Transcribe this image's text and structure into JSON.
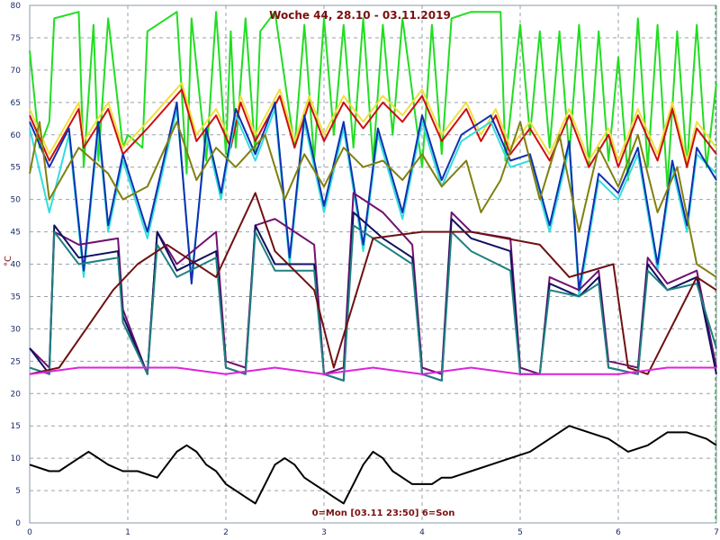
{
  "chart_data": {
    "type": "line",
    "title": "Woche 44, 28.10 - 03.11.2019",
    "footer": "0=Mon [03.11 23:50] 6=Son",
    "ylabel": "°C",
    "xlabel": "",
    "xlim": [
      0,
      7
    ],
    "ylim": [
      0,
      80
    ],
    "x_ticks": [
      0,
      1,
      2,
      3,
      4,
      5,
      6,
      7
    ],
    "y_ticks": [
      0,
      5,
      10,
      15,
      20,
      25,
      30,
      35,
      40,
      45,
      50,
      55,
      60,
      65,
      70,
      75,
      80
    ],
    "grid": "dashed, daily vertical and 5-unit horizontal",
    "series": [
      {
        "color": "#22dd22",
        "x": [
          0,
          0.1,
          0.2,
          0.25,
          0.5,
          0.55,
          0.65,
          0.7,
          0.8,
          0.95,
          1.0,
          1.15,
          1.2,
          1.5,
          1.6,
          1.65,
          1.8,
          1.9,
          2.0,
          2.05,
          2.1,
          2.2,
          2.3,
          2.35,
          2.5,
          2.7,
          2.8,
          2.9,
          3.0,
          3.1,
          3.2,
          3.3,
          3.4,
          3.5,
          3.6,
          3.7,
          3.8,
          4.0,
          4.1,
          4.2,
          4.3,
          4.5,
          4.8,
          4.85,
          5.0,
          5.1,
          5.2,
          5.3,
          5.4,
          5.5,
          5.6,
          5.7,
          5.8,
          5.9,
          6.0,
          6.1,
          6.2,
          6.3,
          6.4,
          6.5,
          6.6,
          6.7,
          6.8,
          6.9,
          7.0
        ],
        "values": [
          73,
          58,
          62,
          78,
          79,
          55,
          77,
          56,
          78,
          58,
          60,
          58,
          76,
          79,
          54,
          78,
          56,
          79,
          57,
          76,
          58,
          78,
          57,
          76,
          79,
          58,
          77,
          56,
          78,
          60,
          77,
          58,
          78,
          56,
          77,
          60,
          78,
          55,
          77,
          57,
          78,
          79,
          79,
          56,
          77,
          60,
          76,
          58,
          76,
          57,
          77,
          55,
          76,
          56,
          72,
          53,
          78,
          55,
          77,
          52,
          76,
          55,
          77,
          55,
          68
        ]
      },
      {
        "color": "#f0e040",
        "x": [
          0,
          0.2,
          0.5,
          0.55,
          0.8,
          0.95,
          1.2,
          1.55,
          1.7,
          1.9,
          2.05,
          2.15,
          2.3,
          2.55,
          2.7,
          2.85,
          3.0,
          3.2,
          3.4,
          3.6,
          3.8,
          4.0,
          4.2,
          4.45,
          4.6,
          4.75,
          4.9,
          5.1,
          5.3,
          5.5,
          5.7,
          5.9,
          6.0,
          6.2,
          6.4,
          6.55,
          6.7,
          6.8,
          7.0
        ],
        "values": [
          64,
          57,
          65,
          59,
          65,
          58,
          62,
          68,
          60,
          64,
          59,
          66,
          60,
          67,
          59,
          66,
          60,
          66,
          62,
          66,
          63,
          67,
          60,
          65,
          60,
          64,
          58,
          62,
          57,
          64,
          56,
          61,
          56,
          64,
          57,
          65,
          56,
          62,
          58
        ]
      },
      {
        "color": "#cc1010",
        "x": [
          0,
          0.2,
          0.5,
          0.55,
          0.8,
          0.95,
          1.2,
          1.55,
          1.7,
          1.9,
          2.05,
          2.15,
          2.3,
          2.55,
          2.7,
          2.85,
          3.0,
          3.2,
          3.4,
          3.6,
          3.8,
          4.0,
          4.2,
          4.45,
          4.6,
          4.75,
          4.9,
          5.1,
          5.3,
          5.5,
          5.7,
          5.9,
          6.0,
          6.2,
          6.4,
          6.55,
          6.7,
          6.8,
          7.0
        ],
        "values": [
          63,
          56,
          64,
          58,
          64,
          57,
          61,
          67,
          59,
          63,
          58,
          65,
          59,
          66,
          58,
          65,
          59,
          65,
          61,
          65,
          62,
          66,
          59,
          64,
          59,
          63,
          57,
          61,
          56,
          63,
          55,
          60,
          55,
          63,
          56,
          64,
          55,
          61,
          57
        ]
      },
      {
        "color": "#33dddd",
        "x": [
          0,
          0.2,
          0.4,
          0.55,
          0.7,
          0.8,
          0.95,
          1.2,
          1.5,
          1.65,
          1.8,
          1.95,
          2.1,
          2.3,
          2.5,
          2.65,
          2.8,
          3.0,
          3.2,
          3.4,
          3.55,
          3.8,
          4.0,
          4.2,
          4.4,
          4.7,
          4.9,
          5.1,
          5.3,
          5.5,
          5.6,
          5.8,
          6.0,
          6.2,
          6.4,
          6.55,
          6.7,
          6.8,
          7.0
        ],
        "values": [
          61,
          48,
          60,
          38,
          61,
          45,
          56,
          44,
          64,
          38,
          60,
          50,
          63,
          56,
          64,
          40,
          62,
          48,
          61,
          42,
          60,
          47,
          62,
          52,
          59,
          62,
          55,
          56,
          45,
          58,
          35,
          53,
          50,
          57,
          39,
          55,
          45,
          57,
          54
        ]
      },
      {
        "color": "#1030b0",
        "x": [
          0,
          0.2,
          0.4,
          0.55,
          0.7,
          0.8,
          0.95,
          1.2,
          1.5,
          1.65,
          1.8,
          1.95,
          2.1,
          2.3,
          2.5,
          2.65,
          2.8,
          3.0,
          3.2,
          3.4,
          3.55,
          3.8,
          4.0,
          4.2,
          4.4,
          4.7,
          4.9,
          5.1,
          5.3,
          5.5,
          5.6,
          5.8,
          6.0,
          6.2,
          6.4,
          6.55,
          6.7,
          6.8,
          7.0
        ],
        "values": [
          62,
          55,
          61,
          39,
          62,
          46,
          57,
          45,
          65,
          37,
          61,
          51,
          64,
          57,
          65,
          41,
          63,
          49,
          62,
          43,
          61,
          48,
          63,
          53,
          60,
          63,
          56,
          57,
          46,
          59,
          36,
          54,
          51,
          58,
          40,
          56,
          46,
          58,
          53
        ]
      },
      {
        "color": "#808010",
        "x": [
          0,
          0.1,
          0.2,
          0.5,
          0.8,
          0.95,
          1.2,
          1.5,
          1.7,
          1.9,
          2.1,
          2.4,
          2.6,
          2.8,
          3.0,
          3.2,
          3.4,
          3.6,
          3.8,
          4.0,
          4.2,
          4.45,
          4.6,
          4.8,
          5.0,
          5.2,
          5.4,
          5.6,
          5.8,
          6.0,
          6.2,
          6.4,
          6.6,
          6.8,
          7.0
        ],
        "values": [
          54,
          62,
          50,
          58,
          54,
          50,
          52,
          62,
          53,
          58,
          55,
          60,
          50,
          57,
          52,
          58,
          55,
          56,
          53,
          57,
          52,
          56,
          48,
          53,
          62,
          50,
          60,
          45,
          58,
          52,
          60,
          48,
          55,
          40,
          38
        ]
      },
      {
        "color": "#701070",
        "x": [
          0,
          0.2,
          0.25,
          0.5,
          0.9,
          0.95,
          1.2,
          1.3,
          1.5,
          1.9,
          2.0,
          2.2,
          2.3,
          2.5,
          2.9,
          3.0,
          3.2,
          3.3,
          3.6,
          3.9,
          4.0,
          4.2,
          4.3,
          4.5,
          4.9,
          5.0,
          5.2,
          5.3,
          5.6,
          5.8,
          5.9,
          6.2,
          6.3,
          6.5,
          6.8,
          7.0
        ],
        "values": [
          27,
          24,
          45,
          43,
          44,
          33,
          23,
          45,
          40,
          45,
          25,
          24,
          46,
          47,
          43,
          23,
          24,
          51,
          48,
          43,
          24,
          23,
          48,
          45,
          44,
          24,
          23,
          38,
          36,
          39,
          25,
          24,
          41,
          37,
          39,
          24
        ]
      },
      {
        "color": "#101060",
        "x": [
          0,
          0.2,
          0.25,
          0.5,
          0.9,
          0.95,
          1.2,
          1.3,
          1.5,
          1.9,
          2.0,
          2.2,
          2.3,
          2.5,
          2.9,
          3.0,
          3.2,
          3.3,
          3.6,
          3.9,
          4.0,
          4.2,
          4.3,
          4.5,
          4.9,
          5.0,
          5.2,
          5.3,
          5.6,
          5.8,
          5.9,
          6.2,
          6.3,
          6.5,
          6.8,
          7.0
        ],
        "values": [
          27,
          23,
          46,
          41,
          42,
          32,
          23,
          45,
          39,
          42,
          24,
          23,
          46,
          40,
          40,
          23,
          22,
          48,
          44,
          41,
          23,
          22,
          47,
          44,
          42,
          23,
          23,
          37,
          35,
          38,
          24,
          23,
          40,
          36,
          38,
          23
        ]
      },
      {
        "color": "#208080",
        "x": [
          0,
          0.2,
          0.25,
          0.5,
          0.9,
          0.95,
          1.2,
          1.3,
          1.5,
          1.9,
          2.0,
          2.2,
          2.3,
          2.5,
          2.9,
          3.0,
          3.2,
          3.3,
          3.6,
          3.9,
          4.0,
          4.2,
          4.3,
          4.5,
          4.9,
          5.0,
          5.2,
          5.3,
          5.6,
          5.8,
          5.9,
          6.2,
          6.3,
          6.5,
          6.8,
          7.0
        ],
        "values": [
          24,
          23,
          45,
          40,
          41,
          31,
          23,
          43,
          38,
          41,
          24,
          23,
          45,
          39,
          39,
          23,
          22,
          46,
          43,
          40,
          23,
          22,
          45,
          42,
          39,
          23,
          23,
          36,
          35,
          37,
          24,
          23,
          39,
          36,
          37,
          27
        ]
      },
      {
        "color": "#701010",
        "x": [
          0,
          0.3,
          0.85,
          1.1,
          1.4,
          1.9,
          2.3,
          2.5,
          2.9,
          3.1,
          3.5,
          4.0,
          4.5,
          5.2,
          5.5,
          5.95,
          6.1,
          6.3,
          6.6,
          6.8,
          7.0
        ],
        "values": [
          23,
          24,
          36,
          40,
          43,
          38,
          51,
          42,
          36,
          24,
          44,
          45,
          45,
          43,
          38,
          40,
          24,
          23,
          32,
          38,
          36
        ]
      },
      {
        "color": "#dd22dd",
        "x": [
          0,
          0.5,
          1.0,
          1.5,
          2.0,
          2.5,
          3.0,
          3.5,
          4.0,
          4.5,
          5.0,
          5.5,
          6.0,
          6.5,
          7.0
        ],
        "values": [
          23,
          24,
          24,
          24,
          23,
          24,
          23,
          24,
          23,
          24,
          23,
          23,
          23,
          24,
          24
        ]
      },
      {
        "color": "#000000",
        "x": [
          0,
          0.2,
          0.3,
          0.5,
          0.6,
          0.7,
          0.8,
          0.95,
          1.1,
          1.3,
          1.4,
          1.5,
          1.6,
          1.7,
          1.8,
          1.9,
          2.0,
          2.1,
          2.2,
          2.3,
          2.4,
          2.5,
          2.6,
          2.7,
          2.8,
          2.9,
          3.0,
          3.1,
          3.2,
          3.3,
          3.4,
          3.5,
          3.6,
          3.7,
          3.8,
          3.9,
          4.0,
          4.1,
          4.2,
          4.3,
          4.5,
          4.7,
          4.9,
          5.1,
          5.3,
          5.5,
          5.7,
          5.9,
          6.1,
          6.3,
          6.5,
          6.7,
          6.9,
          7.0
        ],
        "values": [
          9,
          8,
          8,
          10,
          11,
          10,
          9,
          8,
          8,
          7,
          9,
          11,
          12,
          11,
          9,
          8,
          6,
          5,
          4,
          3,
          6,
          9,
          10,
          9,
          7,
          6,
          5,
          4,
          3,
          6,
          9,
          11,
          10,
          8,
          7,
          6,
          6,
          6,
          7,
          7,
          8,
          9,
          10,
          11,
          13,
          15,
          14,
          13,
          11,
          12,
          14,
          14,
          13,
          12
        ]
      }
    ]
  }
}
